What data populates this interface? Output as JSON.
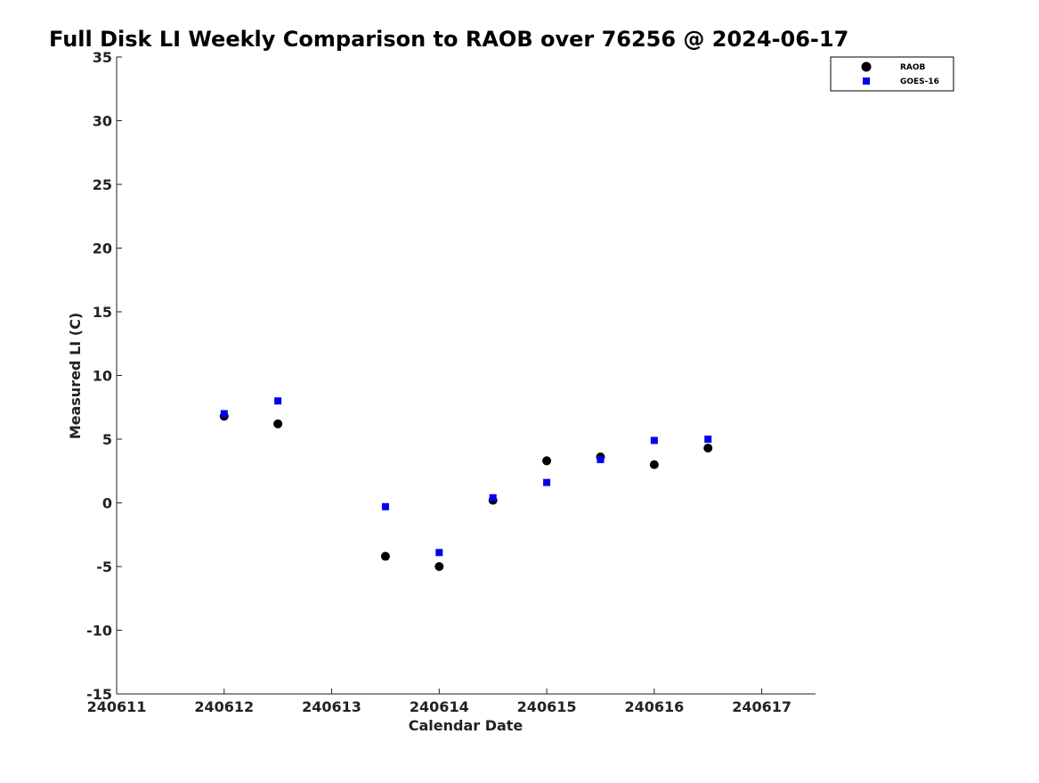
{
  "chart_data": {
    "type": "scatter",
    "title": "Full Disk LI Weekly Comparison to RAOB over 76256 @ 2024-06-17",
    "xlabel": "Calendar Date",
    "ylabel": "Measured LI (C)",
    "xlim": [
      240611,
      240617.5
    ],
    "ylim": [
      -15,
      35
    ],
    "xticks": [
      240611,
      240612,
      240613,
      240614,
      240615,
      240616,
      240617
    ],
    "xtick_labels": [
      "240611",
      "240612",
      "240613",
      "240614",
      "240615",
      "240616",
      "240617"
    ],
    "yticks": [
      35,
      30,
      25,
      20,
      15,
      10,
      5,
      0,
      -5,
      -10,
      -15
    ],
    "ytick_labels": [
      "35",
      "30",
      "25",
      "20",
      "15",
      "10",
      "5",
      "0",
      "-5",
      "-10",
      "-15"
    ],
    "grid": false,
    "legend_position": "top-right",
    "series": [
      {
        "name": "RAOB",
        "marker": "circle",
        "color": "#000000",
        "x": [
          240612,
          240612.5,
          240613.5,
          240614,
          240614.5,
          240615,
          240615.5,
          240616,
          240616.5
        ],
        "y": [
          6.8,
          6.2,
          -4.2,
          -5.0,
          0.2,
          3.3,
          3.6,
          3.0,
          4.3
        ]
      },
      {
        "name": "GOES-16",
        "marker": "square",
        "color": "#0000ee",
        "x": [
          240612,
          240612.5,
          240613.5,
          240614,
          240614.5,
          240615,
          240615.5,
          240616,
          240616.5
        ],
        "y": [
          7.0,
          8.0,
          -0.3,
          -3.9,
          0.4,
          1.6,
          3.4,
          4.9,
          5.0
        ]
      }
    ]
  }
}
